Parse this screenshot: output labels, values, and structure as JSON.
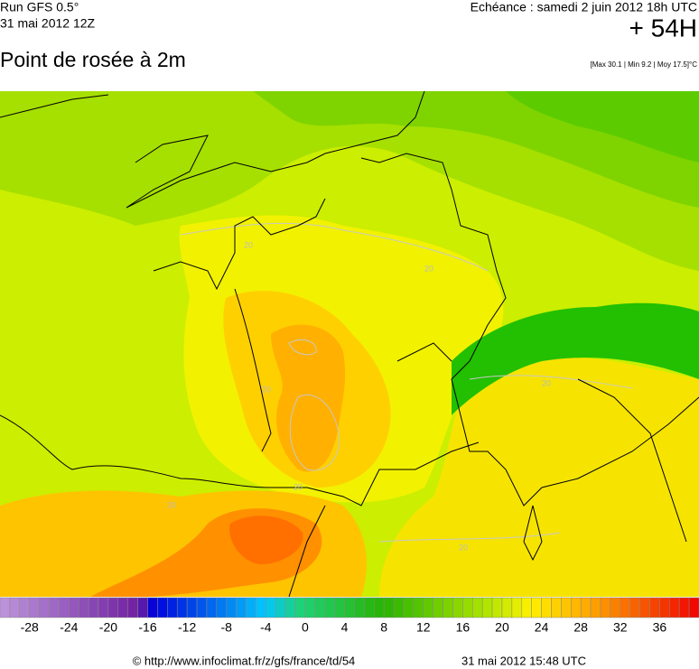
{
  "header": {
    "model": "Run GFS 0.5°",
    "run": "31 mai 2012 12Z",
    "title": "Point de rosée à 2m",
    "valid": "Echéance : samedi 2 juin 2012 18h UTC",
    "lead": "+ 54H",
    "stats": "[Max 30.1 | Min 9.2 | Moy 17.5]°C"
  },
  "map": {
    "contour_labels": [
      "20",
      "20",
      "20",
      "20",
      "20",
      "20",
      "20"
    ]
  },
  "colorbar": {
    "min": -31,
    "max": 40,
    "ticks": [
      -28,
      -24,
      -20,
      -16,
      -12,
      -8,
      -4,
      0,
      4,
      8,
      12,
      16,
      20,
      24,
      28,
      32,
      36
    ]
  },
  "footer": {
    "source": "© http://www.infoclimat.fr/z/gfs/france/td/54",
    "generated": "31 mai 2012 15:48 UTC"
  }
}
